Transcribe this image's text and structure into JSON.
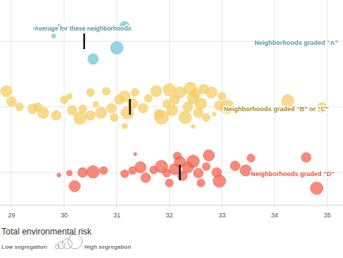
{
  "chart_data": {
    "type": "scatter",
    "xlabel": "Total environmental risk",
    "xlim": [
      28.78,
      35.3
    ],
    "xticks": [
      29,
      30,
      31,
      32,
      33,
      34,
      35
    ],
    "ylim": [
      0.5,
      3.63
    ],
    "yticks": [
      1,
      2,
      3
    ],
    "grid": true,
    "tick_labels": "x",
    "marker": "circle",
    "annotations": [
      {
        "text": "Average for these neighborhoods"
      }
    ],
    "size_legend": {
      "low_label": "Low segregation",
      "high_label": "High segregation"
    },
    "series": [
      {
        "name": "Neighborhoods graded “A”",
        "color": "#6fc8d2",
        "label_color": "#5a9ea5",
        "average": 30.38,
        "x": [
          29.45,
          29.8,
          29.92,
          30.55,
          31.0,
          31.15
        ],
        "values": [
          3.2,
          3.08,
          3.22,
          2.73,
          2.9,
          3.23
        ],
        "size": [
          0.5,
          0.5,
          1,
          3.5,
          5,
          3
        ]
      },
      {
        "name": "Neighborhoods graded “B” or “C”",
        "color": "#f6cd66",
        "label_color": "#ad8c25",
        "average": 31.25,
        "x": [
          28.9,
          29.0,
          29.15,
          29.4,
          29.6,
          29.85,
          30.0,
          30.1,
          30.15,
          30.3,
          30.5,
          30.5,
          30.6,
          30.7,
          30.8,
          30.9,
          30.95,
          31.05,
          31.15,
          31.2,
          31.3,
          31.35,
          31.5,
          31.6,
          31.75,
          31.8,
          31.85,
          31.95,
          32.0,
          32.05,
          32.1,
          32.2,
          32.3,
          32.35,
          32.4,
          32.45,
          32.5,
          32.55,
          32.6,
          32.65,
          32.7,
          32.8,
          32.85,
          32.95,
          33.1,
          33.0,
          34.25,
          34.9,
          32.45,
          31.15,
          29.5,
          30.35
        ],
        "values": [
          2.24,
          2.08,
          2.0,
          1.97,
          1.91,
          1.87,
          2.11,
          2.16,
          1.95,
          1.83,
          2.22,
          1.87,
          2.04,
          1.91,
          2.24,
          1.98,
          1.84,
          2.11,
          2.16,
          1.91,
          2.05,
          2.22,
          1.98,
          2.13,
          2.24,
          1.89,
          1.84,
          2.05,
          2.26,
          1.95,
          2.11,
          2.22,
          1.84,
          2.0,
          2.28,
          2.13,
          2.2,
          1.91,
          2.05,
          2.27,
          1.84,
          2.22,
          1.89,
          2.02,
          2.0,
          2.16,
          2.09,
          1.99,
          1.7,
          1.71,
          2.0,
          1.97
        ],
        "size": [
          4,
          3,
          2,
          3,
          4,
          3,
          2,
          1,
          3,
          5,
          2,
          3,
          1,
          4,
          2,
          3,
          2,
          3,
          4,
          5,
          3,
          2,
          3,
          2,
          4,
          3,
          6,
          2,
          5,
          4,
          3,
          4,
          5,
          3,
          5,
          4,
          3,
          3,
          4,
          3,
          2,
          4,
          0.5,
          3,
          6,
          2,
          5,
          3,
          0.5,
          1,
          2,
          2
        ]
      },
      {
        "name": "Neighborhoods graded “D”",
        "color": "#f26452",
        "label_color": "#e8553f",
        "average": 32.2,
        "x": [
          29.9,
          30.1,
          30.35,
          30.55,
          30.2,
          30.75,
          31.3,
          31.35,
          31.45,
          31.55,
          31.7,
          31.85,
          31.95,
          32.1,
          32.15,
          32.2,
          32.25,
          32.35,
          32.45,
          32.55,
          32.7,
          32.75,
          32.9,
          32.95,
          33.25,
          33.45,
          33.55,
          34.6,
          34.8,
          32.0,
          31.15,
          32.6
        ],
        "values": [
          0.96,
          0.99,
          1.0,
          1.01,
          0.79,
          1.03,
          1.03,
          1.28,
          1.08,
          0.92,
          1.04,
          1.09,
          0.99,
          1.05,
          1.25,
          1.16,
          0.95,
          1.08,
          1.17,
          0.99,
          1.09,
          1.26,
          1.0,
          0.87,
          1.1,
          1.03,
          1.22,
          1.23,
          0.76,
          0.84,
          0.98,
          0.84
        ],
        "size": [
          0.5,
          1,
          3,
          5,
          4,
          2,
          2,
          0.3,
          4,
          3,
          2,
          5,
          2,
          4,
          2,
          4,
          3,
          4,
          5,
          3,
          2,
          4,
          3,
          5,
          3,
          4,
          2,
          3,
          5,
          2,
          2,
          2
        ]
      }
    ]
  }
}
